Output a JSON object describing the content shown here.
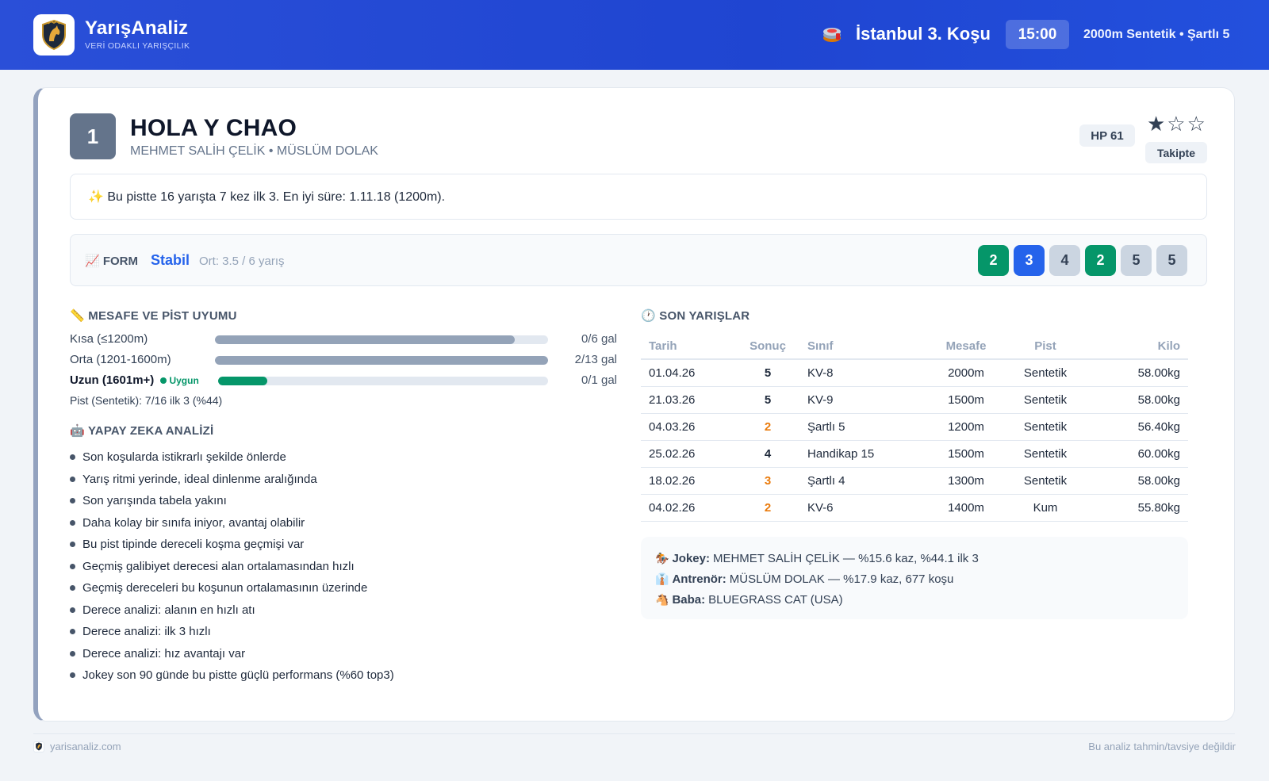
{
  "header": {
    "brand_name": "YarışAnaliz",
    "brand_tagline": "VERİ ODAKLI YARIŞÇILIK",
    "logo_text": "YARIŞ ANALİZ",
    "race_title": "İstanbul 3. Koşu",
    "race_time": "15:00",
    "race_info": "2000m Sentetik • Şartlı 5"
  },
  "horse": {
    "number": "1",
    "name": "HOLA Y CHAO",
    "connections": "MEHMET SALİH ÇELİK • MÜSLÜM DOLAK",
    "hp": "HP 61",
    "stars": "★☆☆",
    "rating": 1,
    "follow_label": "Takipte"
  },
  "note": "✨ Bu pistte 16 yarışta 7 kez ilk 3. En iyi süre: 1.11.18 (1200m).",
  "form": {
    "label": "📈 FORM",
    "status": "Stabil",
    "average": "Ort: 3.5 / 6 yarış",
    "results": [
      {
        "value": "2",
        "color": "#059669"
      },
      {
        "value": "3",
        "color": "#2563eb"
      },
      {
        "value": "4",
        "color": "#cbd5e1"
      },
      {
        "value": "2",
        "color": "#059669"
      },
      {
        "value": "5",
        "color": "#cbd5e1"
      },
      {
        "value": "5",
        "color": "#cbd5e1"
      }
    ]
  },
  "distance": {
    "title": "📏 MESAFE VE PİST UYUMU",
    "rows": [
      {
        "label": "Kısa (≤1200m)",
        "value": "0/6 gal",
        "fill_fraction": 0.9
      },
      {
        "label": "Orta (1201-1600m)",
        "value": "2/13 gal",
        "fill_fraction": 1.0
      },
      {
        "label": "Uzun (1601m+)",
        "tag": "Uygun",
        "value": "0/1 gal",
        "fill_fraction": 0.15
      }
    ],
    "pist_line": "Pist (Sentetik): 7/16 ilk 3 (%44)"
  },
  "ai": {
    "title": "🤖 YAPAY ZEKA ANALİZİ",
    "items": [
      "Son koşularda istikrarlı şekilde önlerde",
      "Yarış ritmi yerinde, ideal dinlenme aralığında",
      "Son yarışında tabela yakını",
      "Daha kolay bir sınıfa iniyor, avantaj olabilir",
      "Bu pist tipinde dereceli koşma geçmişi var",
      "Geçmiş galibiyet derecesi alan ortalamasından hızlı",
      "Geçmiş dereceleri bu koşunun ortalamasının üzerinde",
      "Derece analizi: alanın en hızlı atı",
      "Derece analizi: ilk 3 hızlı",
      "Derece analizi: hız avantajı var",
      "Jokey son 90 günde bu pistte güçlü performans (%60 top3)"
    ]
  },
  "races": {
    "title": "🕐 SON YARIŞLAR",
    "columns": [
      "Tarih",
      "Sonuç",
      "Sınıf",
      "Mesafe",
      "Pist",
      "Kilo"
    ],
    "rows": [
      [
        "01.04.26",
        "5",
        "KV-8",
        "2000m",
        "Sentetik",
        "58.00kg"
      ],
      [
        "21.03.26",
        "5",
        "KV-9",
        "1500m",
        "Sentetik",
        "58.00kg"
      ],
      [
        "04.03.26",
        "2",
        "Şartlı 5",
        "1200m",
        "Sentetik",
        "56.40kg"
      ],
      [
        "25.02.26",
        "4",
        "Handikap 15",
        "1500m",
        "Sentetik",
        "60.00kg"
      ],
      [
        "18.02.26",
        "3",
        "Şartlı 4",
        "1300m",
        "Sentetik",
        "58.00kg"
      ],
      [
        "04.02.26",
        "2",
        "KV-6",
        "1400m",
        "Kum",
        "55.80kg"
      ]
    ]
  },
  "people": {
    "jockey_icon": "🏇",
    "jockey_label": "Jokey:",
    "jockey_value": "MEHMET SALİH ÇELİK — %15.6 kaz, %44.1 ilk 3",
    "trainer_icon": "👔",
    "trainer_label": "Antrenör:",
    "trainer_value": "MÜSLÜM DOLAK — %17.9 kaz, 677 koşu",
    "sire_icon": "🐴",
    "sire_label": "Baba:",
    "sire_value": "BLUEGRASS CAT (USA)"
  },
  "footer": {
    "site": "yarisanaliz.com",
    "disclaimer": "Bu analiz tahmin/tavsiye değildir"
  }
}
